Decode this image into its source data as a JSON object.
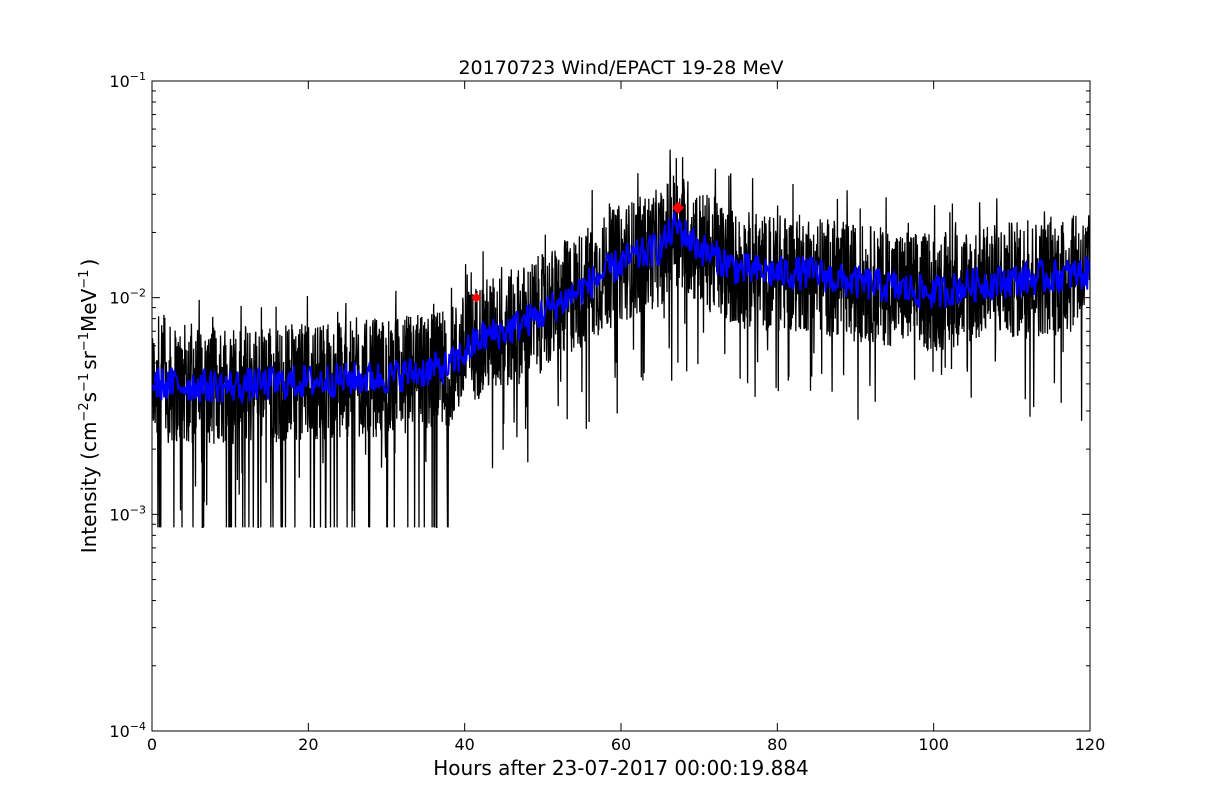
{
  "chart_data": {
    "type": "line",
    "title": "20170723 Wind/EPACT 19-28 MeV",
    "xlabel": "Hours after 23-07-2017 00:00:19.884",
    "ylabel": {
      "prefix": "Intensity (cm",
      "exp1": "−2",
      "mid1": "s",
      "exp2": "−1",
      "mid2": "sr",
      "exp3": "−1",
      "mid3": "MeV",
      "exp4": "−1",
      "suffix": ")"
    },
    "xlim": [
      0,
      120
    ],
    "ylim": [
      0.0001,
      0.1
    ],
    "yscale": "log",
    "grid": false,
    "x_ticks": [
      "0",
      "20",
      "40",
      "60",
      "80",
      "100",
      "120"
    ],
    "x_tick_values": [
      0,
      20,
      40,
      60,
      80,
      100,
      120
    ],
    "y_ticks": [
      {
        "value": 0.0001,
        "base": "10",
        "exp": "−4"
      },
      {
        "value": 0.001,
        "base": "10",
        "exp": "−3"
      },
      {
        "value": 0.01,
        "base": "10",
        "exp": "−2"
      },
      {
        "value": 0.1,
        "base": "10",
        "exp": "−1"
      }
    ],
    "series": [
      {
        "style": "raw",
        "color": "#000000",
        "trend": {
          "x": [
            0,
            10,
            20,
            30,
            38,
            42,
            46,
            50,
            55,
            60,
            65,
            67,
            70,
            75,
            80,
            85,
            88,
            92,
            96,
            100,
            105,
            110,
            115,
            120
          ],
          "y": [
            0.004,
            0.0039,
            0.0041,
            0.0043,
            0.0048,
            0.0065,
            0.0072,
            0.0085,
            0.011,
            0.0145,
            0.017,
            0.0215,
            0.017,
            0.0135,
            0.013,
            0.013,
            0.012,
            0.0115,
            0.011,
            0.0105,
            0.0115,
            0.012,
            0.0125,
            0.013
          ]
        },
        "noise_floor": 0.00087
      },
      {
        "style": "smoothed",
        "color": "#0000ff",
        "trend": {
          "x": [
            0,
            10,
            20,
            30,
            38,
            42,
            46,
            50,
            55,
            60,
            65,
            67,
            70,
            75,
            80,
            85,
            88,
            92,
            96,
            100,
            105,
            110,
            115,
            120
          ],
          "y": [
            0.004,
            0.0039,
            0.0041,
            0.0043,
            0.0048,
            0.0065,
            0.0072,
            0.0085,
            0.011,
            0.0145,
            0.017,
            0.0215,
            0.017,
            0.0135,
            0.013,
            0.013,
            0.012,
            0.0115,
            0.011,
            0.0105,
            0.0115,
            0.012,
            0.0125,
            0.013
          ]
        }
      }
    ],
    "markers": [
      {
        "x": 41.5,
        "y": 0.01,
        "color": "#ff0000"
      },
      {
        "x": 67.3,
        "y": 0.026,
        "color": "#ff0000"
      }
    ]
  }
}
